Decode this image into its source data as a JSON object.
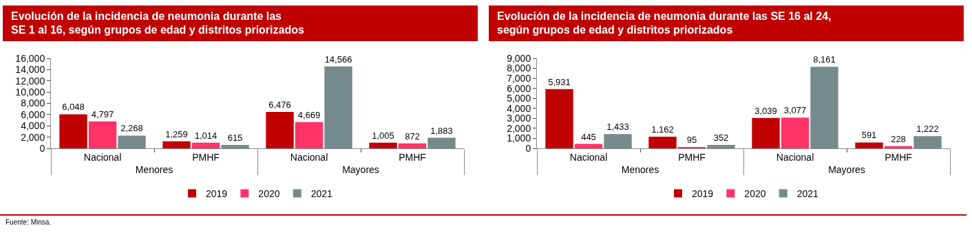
{
  "chart_data": [
    {
      "type": "bar",
      "title": "Evolución de la incidencia de neumonia durante las\nSE 1 al 16, según grupos de edad y distritos priorizados",
      "categories": [
        "Nacional",
        "PMHF",
        "Nacional",
        "PMHF"
      ],
      "annotations": [
        "Menores",
        "Mayores",
        "Fuente: Minsa."
      ],
      "series": [
        {
          "name": "2019",
          "color": "#c00000",
          "values": [
            6048,
            1259,
            6476,
            1005
          ],
          "value_labels": [
            "6,048",
            "1,259",
            "6,476",
            "1,005"
          ]
        },
        {
          "name": "2020",
          "color": "#ff3366",
          "values": [
            4797,
            1014,
            4669,
            872
          ],
          "value_labels": [
            "4,797",
            "1,014",
            "4,669",
            "872"
          ]
        },
        {
          "name": "2021",
          "color": "#758a8d",
          "values": [
            2268,
            615,
            14566,
            1883
          ],
          "value_labels": [
            "2,268",
            "615",
            "14,566",
            "1,883"
          ]
        }
      ],
      "ylim": [
        0,
        16000
      ],
      "yticks": [
        0,
        {
          "value": 2000,
          "label": "2,000"
        },
        {
          "value": 4000,
          "label": "4,000"
        },
        {
          "value": 6000,
          "label": "6,000"
        },
        {
          "value": 8000,
          "label": "8,000"
        },
        {
          "value": 10000,
          "label": "10,000"
        },
        {
          "value": 12000,
          "label": "12,000"
        },
        {
          "value": 14000,
          "label": "14,000"
        },
        {
          "value": 16000,
          "label": "16,000"
        }
      ],
      "legend": "bottom"
    },
    {
      "type": "bar",
      "title": "Evolución de la incidencia de neumonia durante las SE 16 al 24,\nsegún grupos de edad y distritos priorizados",
      "categories": [
        "Nacional",
        "PMHF",
        "Nacional",
        "PMHF"
      ],
      "annotations": [
        "Menores",
        "Mayores"
      ],
      "series": [
        {
          "name": "2019",
          "color": "#c00000",
          "values": [
            5931,
            1162,
            3039,
            591
          ],
          "value_labels": [
            "5,931",
            "1,162",
            "3,039",
            "591"
          ]
        },
        {
          "name": "2020",
          "color": "#ff3366",
          "values": [
            445,
            95,
            3077,
            228
          ],
          "value_labels": [
            "445",
            "95",
            "3,077",
            "228"
          ]
        },
        {
          "name": "2021",
          "color": "#758a8d",
          "values": [
            1433,
            352,
            8161,
            1222
          ],
          "value_labels": [
            "1,433",
            "352",
            "8,161",
            "1,222"
          ]
        }
      ],
      "ylim": [
        0,
        9000
      ],
      "yticks": [
        0,
        {
          "value": 1000,
          "label": "1,000"
        },
        {
          "value": 2000,
          "label": "2,000"
        },
        {
          "value": 3000,
          "label": "3,000"
        },
        {
          "value": 4000,
          "label": "4,000"
        },
        {
          "value": 5000,
          "label": "5,000"
        },
        {
          "value": 6000,
          "label": "6,000"
        },
        {
          "value": 7000,
          "label": "7,000"
        },
        {
          "value": 8000,
          "label": "8,000"
        },
        {
          "value": 9000,
          "label": "9,000"
        }
      ],
      "legend": "bottom"
    }
  ]
}
